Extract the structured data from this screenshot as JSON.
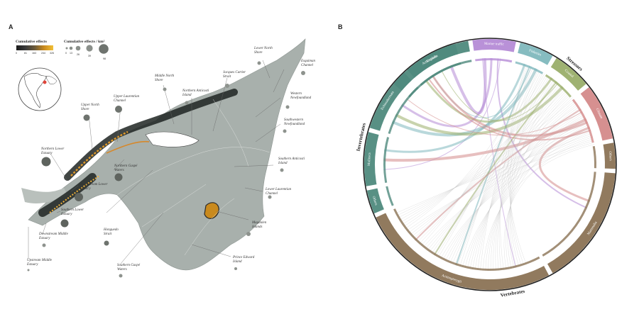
{
  "panels": {
    "a": "A",
    "b": "B"
  },
  "legend": {
    "cumulative_title": "Cumulative effects",
    "cumulative_ticks": [
      "0",
      "81",
      "163",
      "244",
      "326"
    ],
    "perkm_title": "Cumulative effects / km²",
    "perkm_ticks": [
      "0",
      "13",
      "26",
      "39",
      "",
      "98"
    ],
    "gradient_colors": [
      "#1a1a1a",
      "#3a3a3a",
      "#6b5a3a",
      "#c98a1e",
      "#f2c037"
    ]
  },
  "regions": [
    {
      "id": "lower-north-shore",
      "name": "Lower North\nShore"
    },
    {
      "id": "esquiman-channel",
      "name": "Esquiman\nChannel"
    },
    {
      "id": "jacques-cartier-strait",
      "name": "Jacques Cartier\nStrait"
    },
    {
      "id": "middle-north-shore",
      "name": "Middle North\nShore"
    },
    {
      "id": "northern-anticosti-island",
      "name": "Northern Anticosti\nIsland"
    },
    {
      "id": "western-newfoundland",
      "name": "Western\nNewfoundland"
    },
    {
      "id": "upper-laurentian-channel",
      "name": "Upper Laurentian\nChannel"
    },
    {
      "id": "upper-north-shore",
      "name": "Upper North\nShore"
    },
    {
      "id": "southwestern-newfoundland",
      "name": "Southwestern\nNewfoundland"
    },
    {
      "id": "northern-lower-estuary",
      "name": "Northern Lower\nEstuary"
    },
    {
      "id": "northern-gaspe-waters",
      "name": "Northern Gaspé\nWaters"
    },
    {
      "id": "southern-anticosti-island",
      "name": "Southern Anticosti\nIsland"
    },
    {
      "id": "downstream-lower-estuary",
      "name": "Downstream Lower\nEstuary"
    },
    {
      "id": "lower-laurentian-channel",
      "name": "Lower Laurentian\nChannel"
    },
    {
      "id": "southern-lower-estuary",
      "name": "Southern Lower\nEstuary"
    },
    {
      "id": "honguedo-strait",
      "name": "Honguedo\nStrait"
    },
    {
      "id": "magdalen-islands",
      "name": "Magdalen\nIslands"
    },
    {
      "id": "downstream-middle-estuary",
      "name": "Downstream Middle\nEstuary"
    },
    {
      "id": "prince-edward-island",
      "name": "Prince Edward\nIsland"
    },
    {
      "id": "upstream-middle-estuary",
      "name": "Upstream Middle\nEstuary"
    },
    {
      "id": "southern-gaspe-waters",
      "name": "Southern Gaspé\nWaters"
    }
  ],
  "chord": {
    "groups": [
      {
        "name": "Invertebrates",
        "color": "#222222"
      },
      {
        "name": "Stressors",
        "color": "#222222"
      },
      {
        "name": "Vertebrates",
        "color": "#222222"
      }
    ],
    "taxa": [
      {
        "name": "Arthropoda",
        "color": "#4f8a7d",
        "group": "Invertebrates"
      },
      {
        "name": "Cnidaria",
        "color": "#4f8a7d",
        "group": "Invertebrates"
      },
      {
        "name": "Echinodermata",
        "color": "#4f8a7d",
        "group": "Invertebrates"
      },
      {
        "name": "Mollusca",
        "color": "#4f8a7d",
        "group": "Invertebrates"
      },
      {
        "name": "Others",
        "color": "#4f8a7d",
        "group": "Invertebrates"
      },
      {
        "name": "Actinopterygii",
        "color": "#8b7355",
        "group": "Vertebrates"
      },
      {
        "name": "Mammalia",
        "color": "#8b7355",
        "group": "Vertebrates"
      },
      {
        "name": "Others",
        "color": "#8b7355",
        "group": "Vertebrates"
      }
    ],
    "stressors": [
      {
        "name": "Marine traffic",
        "color": "#b58bd6"
      },
      {
        "name": "Fisheries",
        "color": "#7fb8bd"
      },
      {
        "name": "Coastal",
        "color": "#9aae6a"
      },
      {
        "name": "Climate",
        "color": "#d48a8a"
      }
    ]
  }
}
